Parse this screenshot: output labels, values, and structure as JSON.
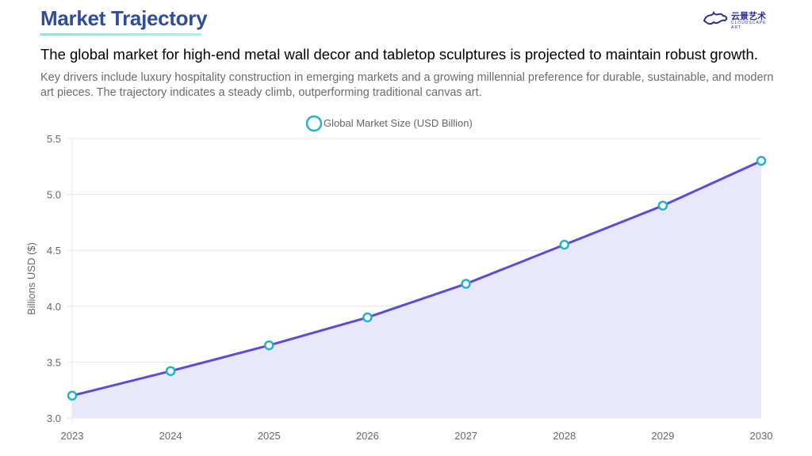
{
  "header": {
    "title": "Market Trajectory",
    "logo": {
      "name_cn": "云景艺术",
      "name_en": "CLOUDSCAPE ART"
    },
    "headline": "The global market for high-end metal wall decor and tabletop sculptures is projected to maintain robust growth.",
    "description": "Key drivers include luxury hospitality construction in emerging markets and a growing millennial preference for durable, sustainable, and modern art pieces. The trajectory indicates a steady climb, outperforming traditional canvas art."
  },
  "chart_data": {
    "type": "line",
    "fill": true,
    "title": "",
    "xlabel": "",
    "ylabel": "Billions USD ($)",
    "legend": {
      "label": "Global Market Size (USD Billion)",
      "position": "top-center"
    },
    "categories": [
      "2023",
      "2024",
      "2025",
      "2026",
      "2027",
      "2028",
      "2029",
      "2030"
    ],
    "series": [
      {
        "name": "Global Market Size (USD Billion)",
        "values": [
          3.2,
          3.42,
          3.65,
          3.9,
          4.2,
          4.55,
          4.9,
          5.3
        ]
      }
    ],
    "ylim": [
      3.0,
      5.5
    ],
    "yticks": [
      "3.0",
      "3.5",
      "4.0",
      "4.5",
      "5.0",
      "5.5"
    ],
    "grid": true,
    "colors": {
      "line": "#5b4bdb",
      "fill": "#e9e7fa",
      "marker": "#22b3c9"
    }
  }
}
